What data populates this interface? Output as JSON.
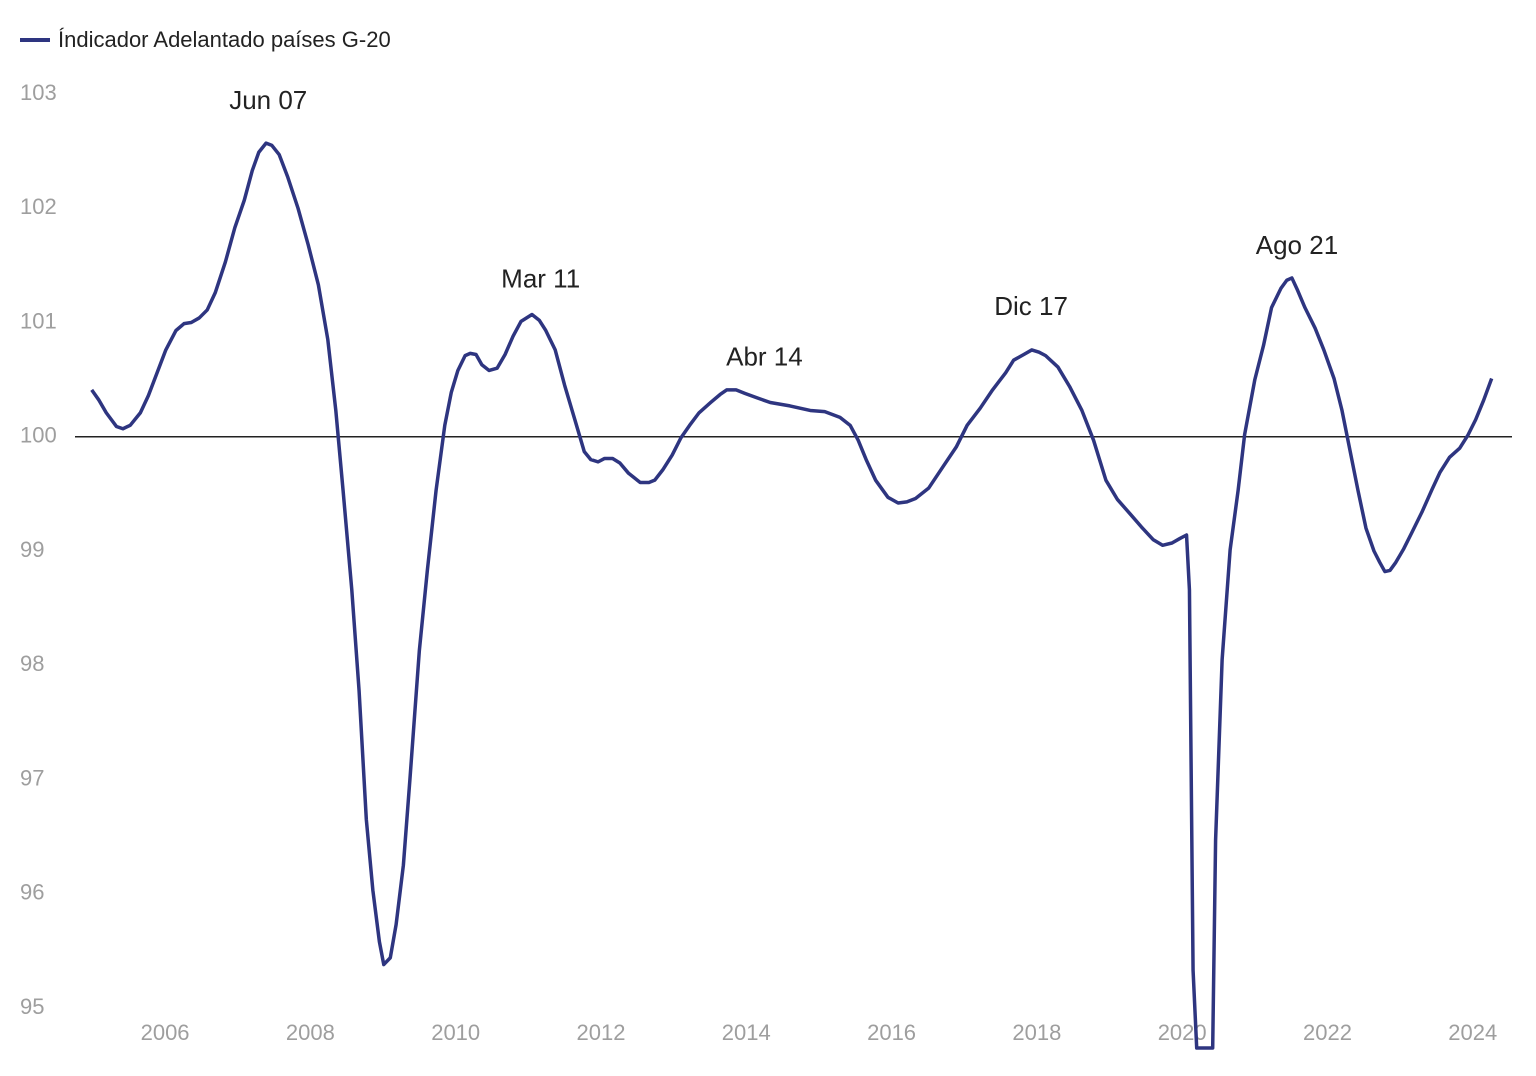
{
  "chart_data": {
    "type": "line",
    "legend_position": "top-left",
    "reference_line": 100,
    "x": [
      2004.99,
      2005.09,
      2005.19,
      2005.33,
      2005.42,
      2005.52,
      2005.66,
      2005.77,
      2005.89,
      2006.01,
      2006.15,
      2006.26,
      2006.36,
      2006.47,
      2006.58,
      2006.69,
      2006.83,
      2006.96,
      2007.09,
      2007.2,
      2007.29,
      2007.39,
      2007.47,
      2007.57,
      2007.69,
      2007.83,
      2007.97,
      2008.11,
      2008.24,
      2008.35,
      2008.45,
      2008.57,
      2008.67,
      2008.77,
      2008.86,
      2008.95,
      2009.01,
      2009.1,
      2009.18,
      2009.28,
      2009.37,
      2009.5,
      2009.61,
      2009.73,
      2009.85,
      2009.94,
      2010.03,
      2010.13,
      2010.2,
      2010.28,
      2010.36,
      2010.46,
      2010.57,
      2010.68,
      2010.79,
      2010.9,
      2011.05,
      2011.15,
      2011.24,
      2011.37,
      2011.5,
      2011.64,
      2011.77,
      2011.86,
      2011.96,
      2012.05,
      2012.16,
      2012.26,
      2012.38,
      2012.54,
      2012.66,
      2012.74,
      2012.85,
      2012.98,
      2013.1,
      2013.22,
      2013.35,
      2013.51,
      2013.64,
      2013.73,
      2013.86,
      2013.98,
      2014.15,
      2014.33,
      2014.6,
      2014.88,
      2015.08,
      2015.29,
      2015.43,
      2015.54,
      2015.65,
      2015.78,
      2015.95,
      2016.09,
      2016.21,
      2016.33,
      2016.51,
      2016.71,
      2016.89,
      2017.04,
      2017.22,
      2017.39,
      2017.57,
      2017.68,
      2017.82,
      2017.93,
      2018.03,
      2018.12,
      2018.29,
      2018.45,
      2018.62,
      2018.78,
      2018.95,
      2019.11,
      2019.29,
      2019.44,
      2019.6,
      2019.73,
      2019.86,
      2019.97,
      2020.06,
      2020.1,
      2020.15,
      2020.2,
      2020.42,
      2020.46,
      2020.55,
      2020.66,
      2020.77,
      2020.86,
      2021.0,
      2021.12,
      2021.23,
      2021.36,
      2021.44,
      2021.51,
      2021.59,
      2021.69,
      2021.83,
      2021.95,
      2022.09,
      2022.2,
      2022.31,
      2022.42,
      2022.53,
      2022.64,
      2022.72,
      2022.79,
      2022.86,
      2022.94,
      2023.05,
      2023.16,
      2023.3,
      2023.44,
      2023.55,
      2023.68,
      2023.82,
      2023.93,
      2024.04,
      2024.15,
      2024.26
    ],
    "series": [
      {
        "name": "Índicador Adelantado países G-20",
        "color": "#2e3580",
        "values": [
          100.41,
          100.32,
          100.21,
          100.09,
          100.07,
          100.1,
          100.21,
          100.36,
          100.56,
          100.76,
          100.93,
          100.99,
          101.0,
          101.04,
          101.11,
          101.26,
          101.53,
          101.83,
          102.07,
          102.33,
          102.49,
          102.57,
          102.55,
          102.47,
          102.27,
          102.0,
          101.68,
          101.33,
          100.85,
          100.23,
          99.53,
          98.66,
          97.78,
          96.65,
          96.03,
          95.58,
          95.38,
          95.44,
          95.73,
          96.25,
          97.0,
          98.13,
          98.83,
          99.53,
          100.1,
          100.39,
          100.58,
          100.71,
          100.73,
          100.72,
          100.63,
          100.58,
          100.6,
          100.72,
          100.88,
          101.01,
          101.07,
          101.02,
          100.93,
          100.76,
          100.45,
          100.15,
          99.87,
          99.8,
          99.78,
          99.81,
          99.81,
          99.77,
          99.68,
          99.6,
          99.6,
          99.62,
          99.71,
          99.84,
          99.99,
          100.1,
          100.21,
          100.3,
          100.37,
          100.41,
          100.41,
          100.38,
          100.34,
          100.3,
          100.27,
          100.23,
          100.22,
          100.17,
          100.1,
          99.97,
          99.8,
          99.62,
          99.47,
          99.42,
          99.43,
          99.46,
          99.55,
          99.74,
          99.91,
          100.1,
          100.25,
          100.41,
          100.56,
          100.67,
          100.72,
          100.76,
          100.74,
          100.71,
          100.61,
          100.44,
          100.23,
          99.97,
          99.62,
          99.45,
          99.32,
          99.21,
          99.1,
          99.05,
          99.07,
          99.11,
          99.14,
          98.66,
          95.33,
          94.65,
          94.65,
          96.47,
          98.05,
          99.01,
          99.53,
          100.02,
          100.5,
          100.8,
          101.13,
          101.3,
          101.37,
          101.39,
          101.28,
          101.13,
          100.95,
          100.76,
          100.51,
          100.23,
          99.88,
          99.53,
          99.2,
          99.0,
          98.9,
          98.82,
          98.83,
          98.9,
          99.02,
          99.16,
          99.34,
          99.54,
          99.69,
          99.82,
          99.9,
          100.01,
          100.15,
          100.32,
          100.51
        ]
      }
    ],
    "annotations": [
      {
        "label": "Jun 07",
        "x": 2007.42
      },
      {
        "label": "Mar 11",
        "x": 2011.17
      },
      {
        "label": "Abr 14",
        "x": 2014.25
      },
      {
        "label": "Dic 17",
        "x": 2017.92
      },
      {
        "label": "Ago 21",
        "x": 2021.58
      }
    ],
    "xlim": [
      2004.76,
      2024.54
    ],
    "xticks": [
      2006,
      2008,
      2010,
      2012,
      2014,
      2016,
      2018,
      2020,
      2022,
      2024
    ],
    "ylim": [
      95,
      103
    ],
    "yticks": [
      95,
      96,
      97,
      98,
      99,
      100,
      101,
      102,
      103
    ]
  }
}
